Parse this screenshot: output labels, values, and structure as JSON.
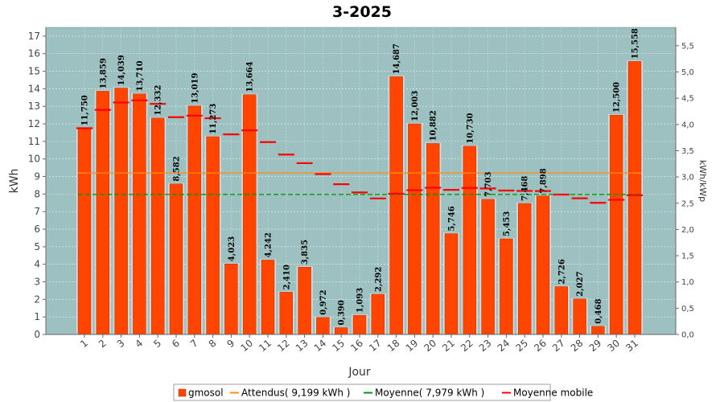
{
  "chart_data": {
    "type": "bar",
    "title": "3-2025",
    "xlabel": "Jour",
    "ylabel": "kWh",
    "ylabel_right": "kWh/kWp",
    "ylim": [
      0,
      17.5
    ],
    "ylim_right": [
      0,
      5.85
    ],
    "y_ticks": [
      0,
      1,
      2,
      3,
      4,
      5,
      6,
      7,
      8,
      9,
      10,
      11,
      12,
      13,
      14,
      15,
      16,
      17
    ],
    "y_ticks_right": [
      "0,0",
      "0,5",
      "1,0",
      "1,5",
      "2,0",
      "2,5",
      "3,0",
      "3,5",
      "4,0",
      "4,5",
      "5,0",
      "5,5"
    ],
    "grid": true,
    "legend_position": "bottom",
    "categories": [
      "1",
      "2",
      "3",
      "4",
      "5",
      "6",
      "7",
      "8",
      "9",
      "10",
      "11",
      "12",
      "13",
      "14",
      "15",
      "16",
      "17",
      "18",
      "19",
      "20",
      "21",
      "22",
      "23",
      "24",
      "25",
      "26",
      "27",
      "28",
      "29",
      "30",
      "31"
    ],
    "series": [
      {
        "name": "gmosol",
        "color": "#ff4500",
        "values": [
          11.75,
          13.859,
          14.039,
          13.71,
          12.332,
          8.582,
          13.019,
          11.273,
          4.023,
          13.664,
          4.242,
          2.41,
          3.835,
          0.972,
          0.39,
          1.093,
          2.292,
          14.687,
          12.003,
          10.882,
          5.746,
          10.73,
          7.703,
          5.453,
          7.468,
          7.898,
          2.726,
          2.027,
          0.468,
          12.5,
          15.558
        ],
        "labels": [
          "11,750",
          "13,859",
          "14,039",
          "13,710",
          "12,332",
          "8,582",
          "13,019",
          "11,273",
          "4,023",
          "13,664",
          "4,242",
          "2,410",
          "3,835",
          "0,972",
          "0,390",
          "1,093",
          "2,292",
          "14,687",
          "12,003",
          "10,882",
          "5,746",
          "10,730",
          "7,703",
          "5,453",
          "7,468",
          "7,898",
          "2,726",
          "2,027",
          "0,468",
          "12,500",
          "15,558"
        ]
      },
      {
        "name": "Attendus( 9,199 kWh )",
        "color": "#ff8c1a",
        "value": 9.199
      },
      {
        "name": "Moyenne( 7,979 kWh )",
        "color": "#009900",
        "value": 7.979
      },
      {
        "name": "Moyenne mobile",
        "color": "#ff0000",
        "values": [
          11.75,
          12.8,
          13.22,
          13.34,
          13.14,
          12.38,
          12.47,
          12.32,
          11.4,
          11.63,
          10.96,
          10.25,
          9.76,
          9.14,
          8.56,
          8.09,
          7.75,
          8.02,
          8.22,
          8.36,
          8.24,
          8.35,
          8.32,
          8.2,
          8.18,
          8.17,
          7.97,
          7.76,
          7.5,
          7.67,
          7.93
        ]
      }
    ]
  }
}
